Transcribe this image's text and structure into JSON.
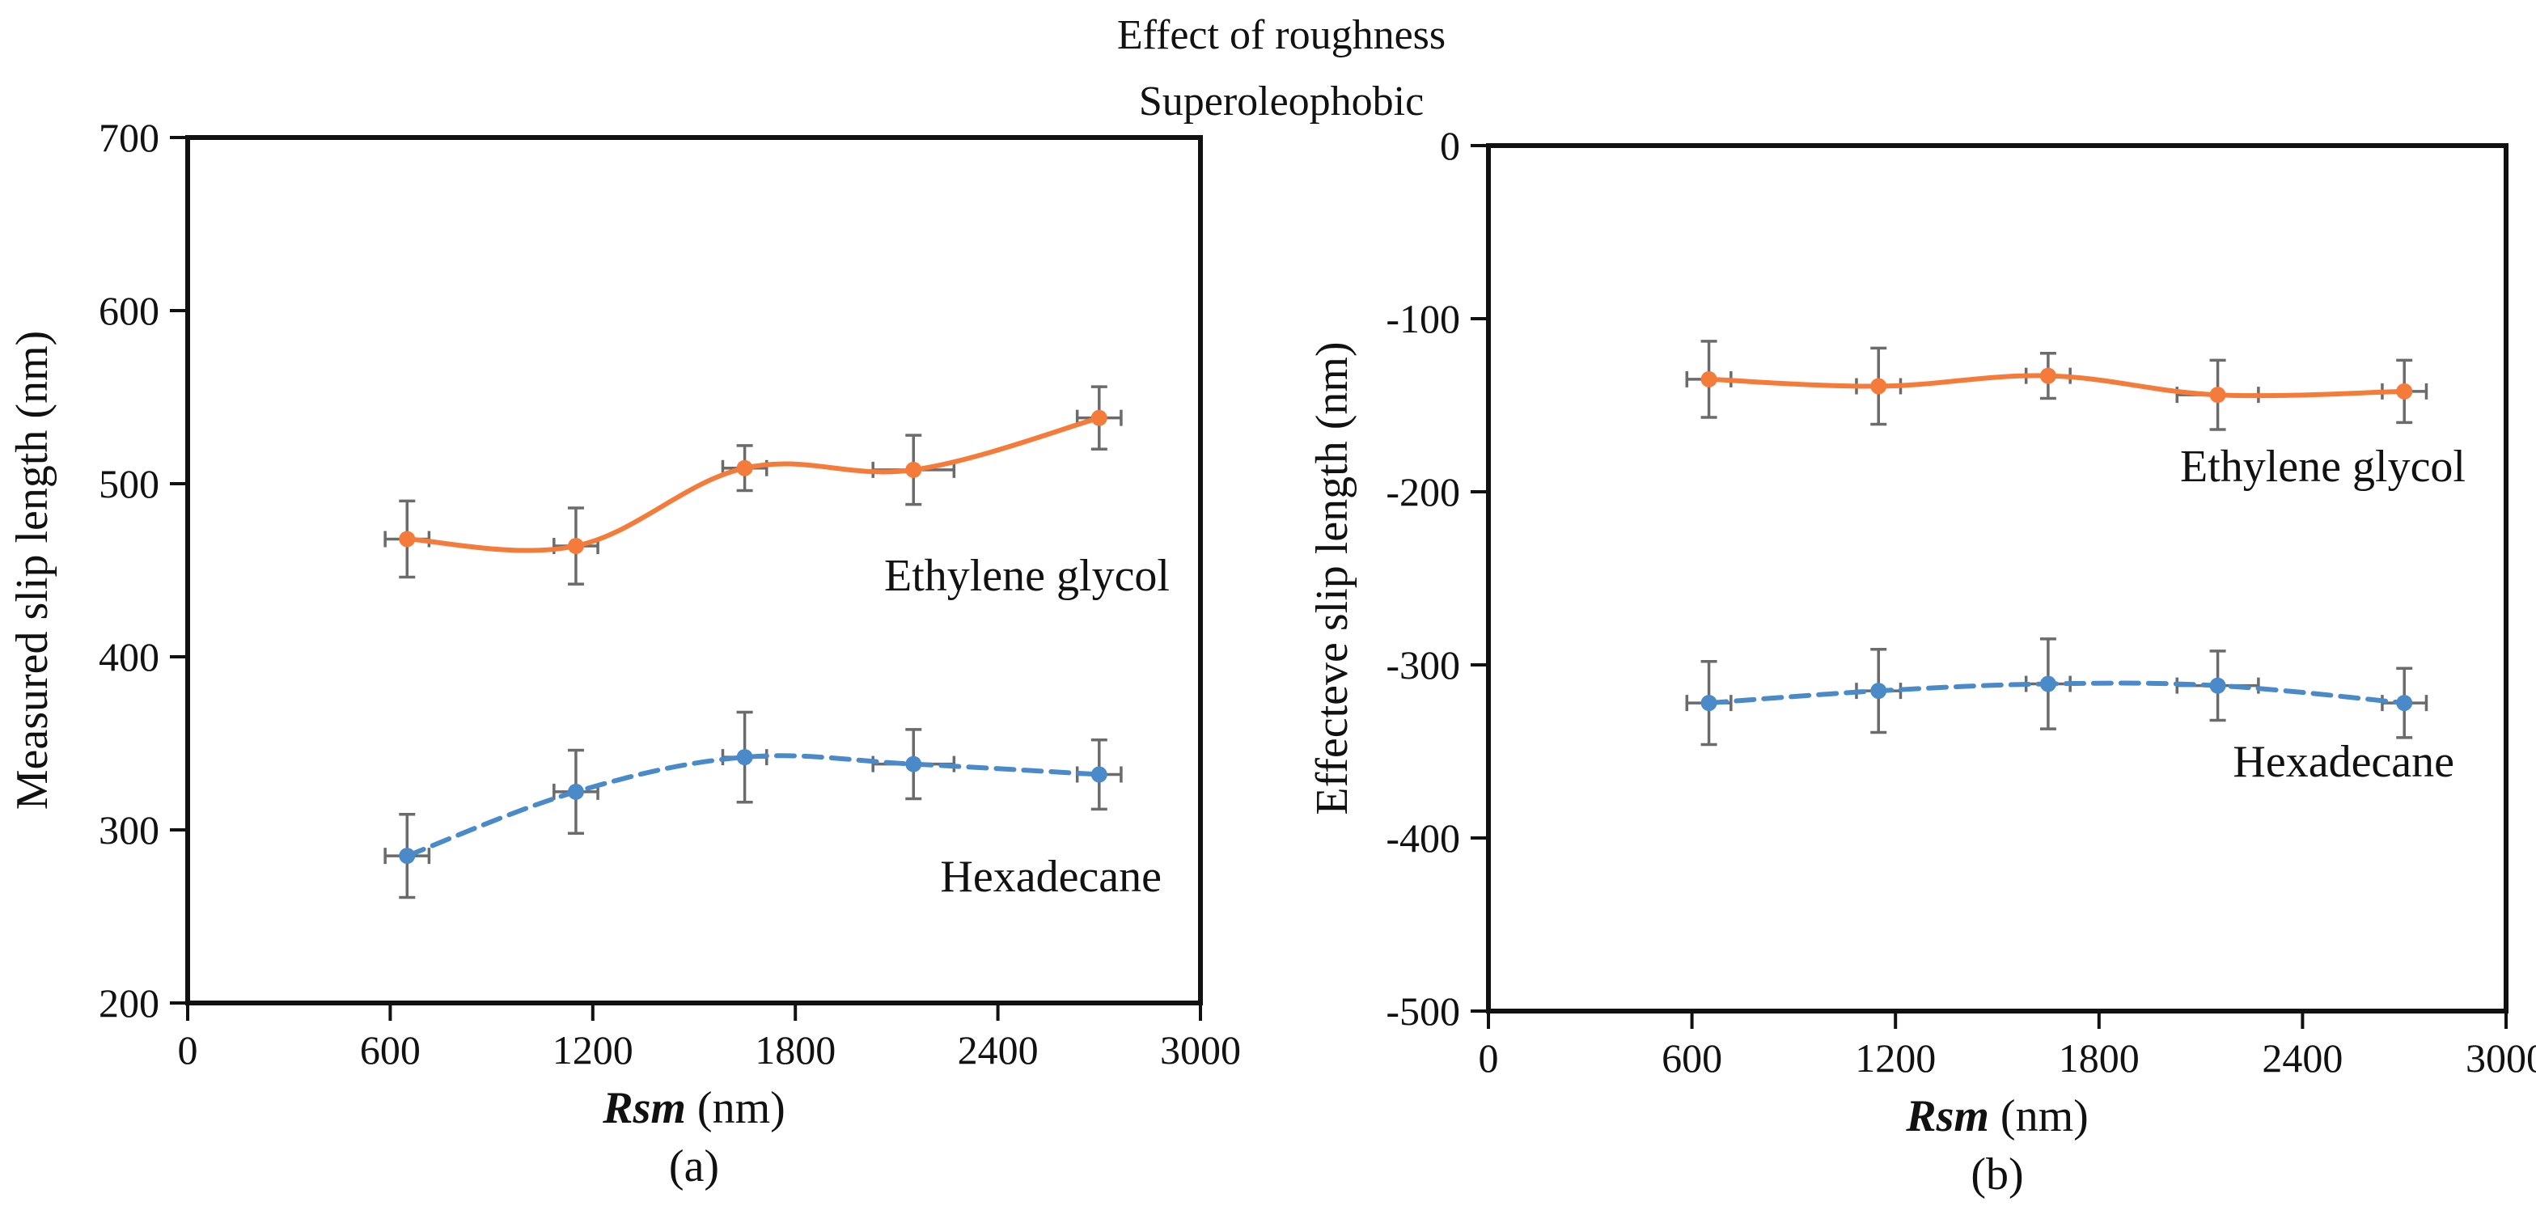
{
  "figure": {
    "title_line1": "Effect of roughness",
    "title_line2": "Superoleophobic"
  },
  "colors": {
    "ethylene_glycol": "#f47b3a",
    "hexadecane": "#4a8ac9",
    "error_bar": "#6b6b6b",
    "axis": "#111111"
  },
  "chart_data": [
    {
      "type": "line",
      "panel_label": "(a)",
      "xlabel_bold": "Rsm",
      "xlabel_unit": " (nm)",
      "ylabel": "Measured slip length (nm)",
      "xlim": [
        0,
        3000
      ],
      "ylim": [
        200,
        700
      ],
      "xticks": [
        0,
        600,
        1200,
        1800,
        2400,
        3000
      ],
      "yticks": [
        200,
        300,
        400,
        500,
        600,
        700
      ],
      "series": [
        {
          "name": "Ethylene glycol",
          "style": "solid",
          "x": [
            650,
            1150,
            1650,
            2150,
            2700
          ],
          "y": [
            468,
            464,
            509,
            508,
            538
          ],
          "xerr": [
            65,
            65,
            65,
            120,
            65
          ],
          "yerr": [
            22,
            22,
            13,
            20,
            18
          ]
        },
        {
          "name": "Hexadecane",
          "style": "dashed",
          "x": [
            650,
            1150,
            1650,
            2150,
            2700
          ],
          "y": [
            285,
            322,
            342,
            338,
            332
          ],
          "xerr": [
            65,
            65,
            65,
            120,
            65
          ],
          "yerr": [
            24,
            24,
            26,
            20,
            20
          ]
        }
      ]
    },
    {
      "type": "line",
      "panel_label": "(b)",
      "xlabel_bold": "Rsm",
      "xlabel_unit": " (nm)",
      "ylabel": "Effecteve slip length (nm)",
      "xlim": [
        0,
        3000
      ],
      "ylim": [
        -500,
        0
      ],
      "xticks": [
        0,
        600,
        1200,
        1800,
        2400,
        3000
      ],
      "yticks": [
        0,
        -100,
        -200,
        -300,
        -400,
        -500
      ],
      "series": [
        {
          "name": "Ethylene glycol",
          "style": "solid",
          "x": [
            650,
            1150,
            1650,
            2150,
            2700
          ],
          "y": [
            -135,
            -139,
            -133,
            -144,
            -142
          ],
          "xerr": [
            65,
            65,
            65,
            120,
            65
          ],
          "yerr": [
            22,
            22,
            13,
            20,
            18
          ]
        },
        {
          "name": "Hexadecane",
          "style": "dashed",
          "x": [
            650,
            1150,
            1650,
            2150,
            2700
          ],
          "y": [
            -322,
            -315,
            -311,
            -312,
            -322
          ],
          "xerr": [
            65,
            65,
            65,
            120,
            65
          ],
          "yerr": [
            24,
            24,
            26,
            20,
            20
          ]
        }
      ]
    }
  ]
}
